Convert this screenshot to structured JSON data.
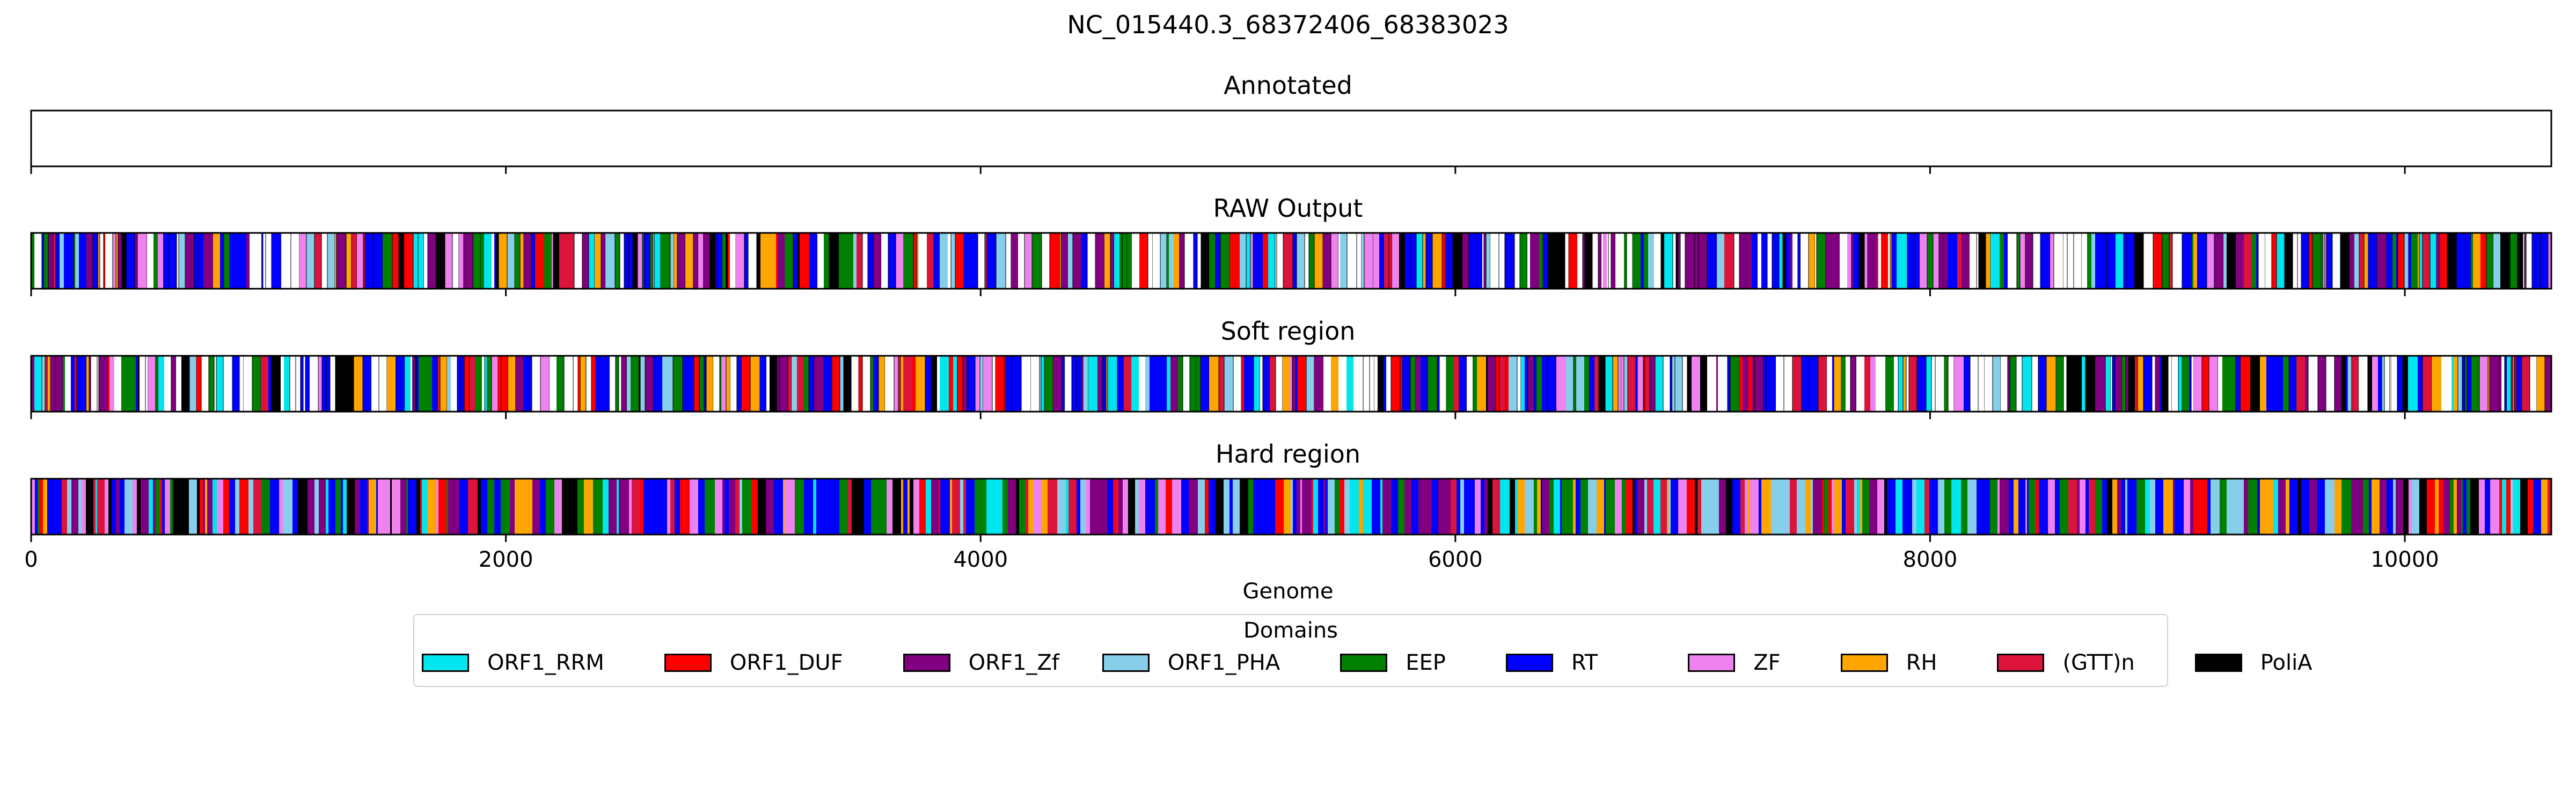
{
  "chart_data": {
    "type": "genome-track",
    "title": "NC_015440.3_68372406_68383023",
    "xlabel": "Genome",
    "xlim": [
      0,
      10617
    ],
    "xticks": [
      0,
      2000,
      4000,
      6000,
      8000,
      10000
    ],
    "tracks": [
      {
        "title": "Annotated",
        "segments": []
      },
      {
        "title": "RAW Output",
        "seed": 11,
        "white_gaps": true
      },
      {
        "title": "Soft region",
        "seed": 23,
        "white_gaps": true
      },
      {
        "title": "Hard region",
        "seed": 37,
        "white_gaps": false
      }
    ],
    "legend": {
      "title": "Domains",
      "placement": "bottom-center",
      "items": [
        {
          "label": "ORF1_RRM",
          "color": "#00e5ee"
        },
        {
          "label": "ORF1_DUF",
          "color": "#ff0000"
        },
        {
          "label": "ORF1_Zf",
          "color": "#800080"
        },
        {
          "label": "ORF1_PHA",
          "color": "#87ceeb"
        },
        {
          "label": "EEP",
          "color": "#008000"
        },
        {
          "label": "RT",
          "color": "#0000ff"
        },
        {
          "label": "ZF",
          "color": "#ee82ee"
        },
        {
          "label": "RH",
          "color": "#ffa500"
        },
        {
          "label": "(GTT)n",
          "color": "#dc143c"
        },
        {
          "label": "PoliA",
          "color": "#000000"
        }
      ]
    }
  }
}
